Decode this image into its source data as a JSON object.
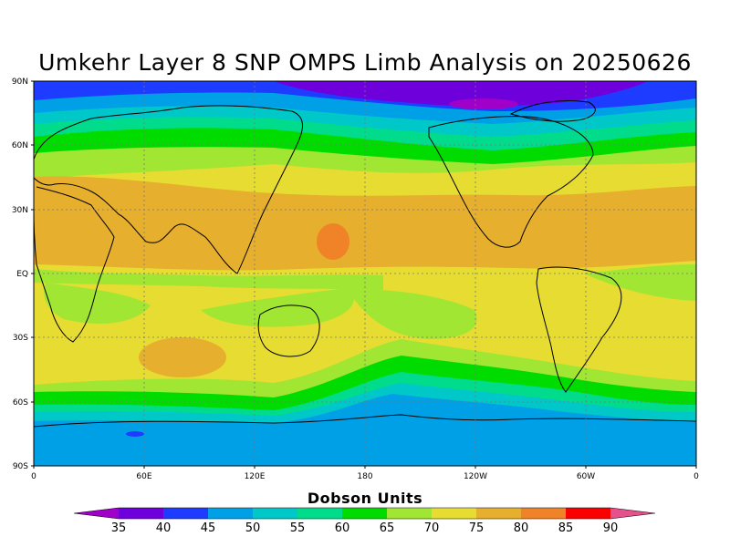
{
  "title": "Umkehr Layer 8 SNP OMPS Limb Analysis on 20250626",
  "map": {
    "projection": "equirectangular",
    "lat_labels": [
      "90N",
      "60N",
      "30N",
      "EQ",
      "30S",
      "60S",
      "90S"
    ],
    "lon_labels": [
      "0",
      "60E",
      "120E",
      "180",
      "120W",
      "60W",
      "0"
    ],
    "grid": "dotted"
  },
  "colorbar": {
    "title": "Dobson Units",
    "levels": [
      "35",
      "40",
      "45",
      "50",
      "55",
      "60",
      "65",
      "70",
      "75",
      "80",
      "85",
      "90"
    ],
    "colors": [
      "#a000c8",
      "#6e00dc",
      "#1e3cff",
      "#00a0e6",
      "#00c8c8",
      "#00dc8c",
      "#00dc00",
      "#a0e632",
      "#e6dc32",
      "#e6af2d",
      "#f08228",
      "#fa0000",
      "#e6508c"
    ]
  },
  "chart_data": {
    "type": "heatmap",
    "title": "Umkehr Layer 8 SNP OMPS Limb Analysis on 20250626",
    "units": "Dobson Units",
    "date": "20250626",
    "x_range": [
      "0",
      "0"
    ],
    "y_range": [
      "90S",
      "90N"
    ],
    "zonal_pattern": [
      {
        "lat": "75N-90N",
        "value_range": [
          35,
          45
        ]
      },
      {
        "lat": "60N-75N",
        "value_range": [
          45,
          65
        ]
      },
      {
        "lat": "40N-55N",
        "value_range": [
          65,
          75
        ]
      },
      {
        "lat": "5N-35N",
        "value_range": [
          75,
          85
        ]
      },
      {
        "lat": "10S-5N",
        "value_range": [
          70,
          75
        ]
      },
      {
        "lat": "40S-10S",
        "value_range": [
          70,
          80
        ]
      },
      {
        "lat": "60S-45S",
        "value_range": [
          55,
          65
        ]
      },
      {
        "lat": "90S-65S",
        "value_range": [
          45,
          50
        ]
      }
    ]
  }
}
